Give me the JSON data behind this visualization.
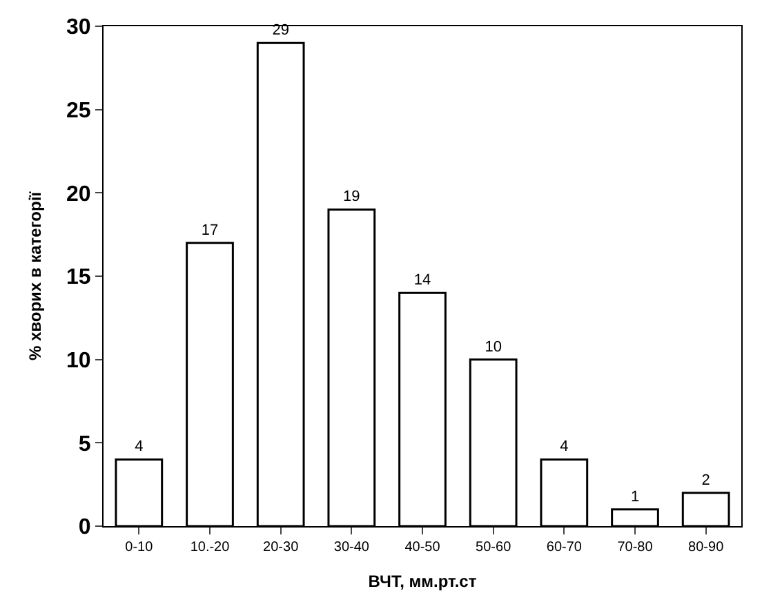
{
  "chart_data": {
    "type": "bar",
    "categories": [
      "0-10",
      "10.-20",
      "20-30",
      "30-40",
      "40-50",
      "50-60",
      "60-70",
      "70-80",
      "80-90"
    ],
    "values": [
      4,
      17,
      29,
      19,
      14,
      10,
      4,
      1,
      2
    ],
    "color": "#ffffff",
    "xlabel": "ВЧТ, мм.рт.ст",
    "ylabel": "% хворих в категорії",
    "ylim": [
      0,
      30
    ],
    "yticks": [
      0,
      5,
      10,
      15,
      20,
      25,
      30
    ],
    "data_labels": true
  }
}
